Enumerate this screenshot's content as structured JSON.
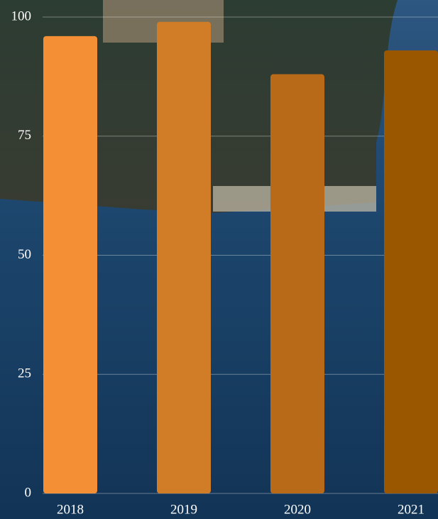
{
  "chart_data": {
    "type": "bar",
    "categories": [
      "2018",
      "2019",
      "2020",
      "2021"
    ],
    "values": [
      96,
      99,
      88,
      93
    ],
    "colors": [
      "#f58f35",
      "#d17c27",
      "#b86a18",
      "#9b5600"
    ],
    "ylim": [
      0,
      100
    ],
    "yticks": [
      0,
      25,
      50,
      75,
      100
    ],
    "grid": true
  }
}
